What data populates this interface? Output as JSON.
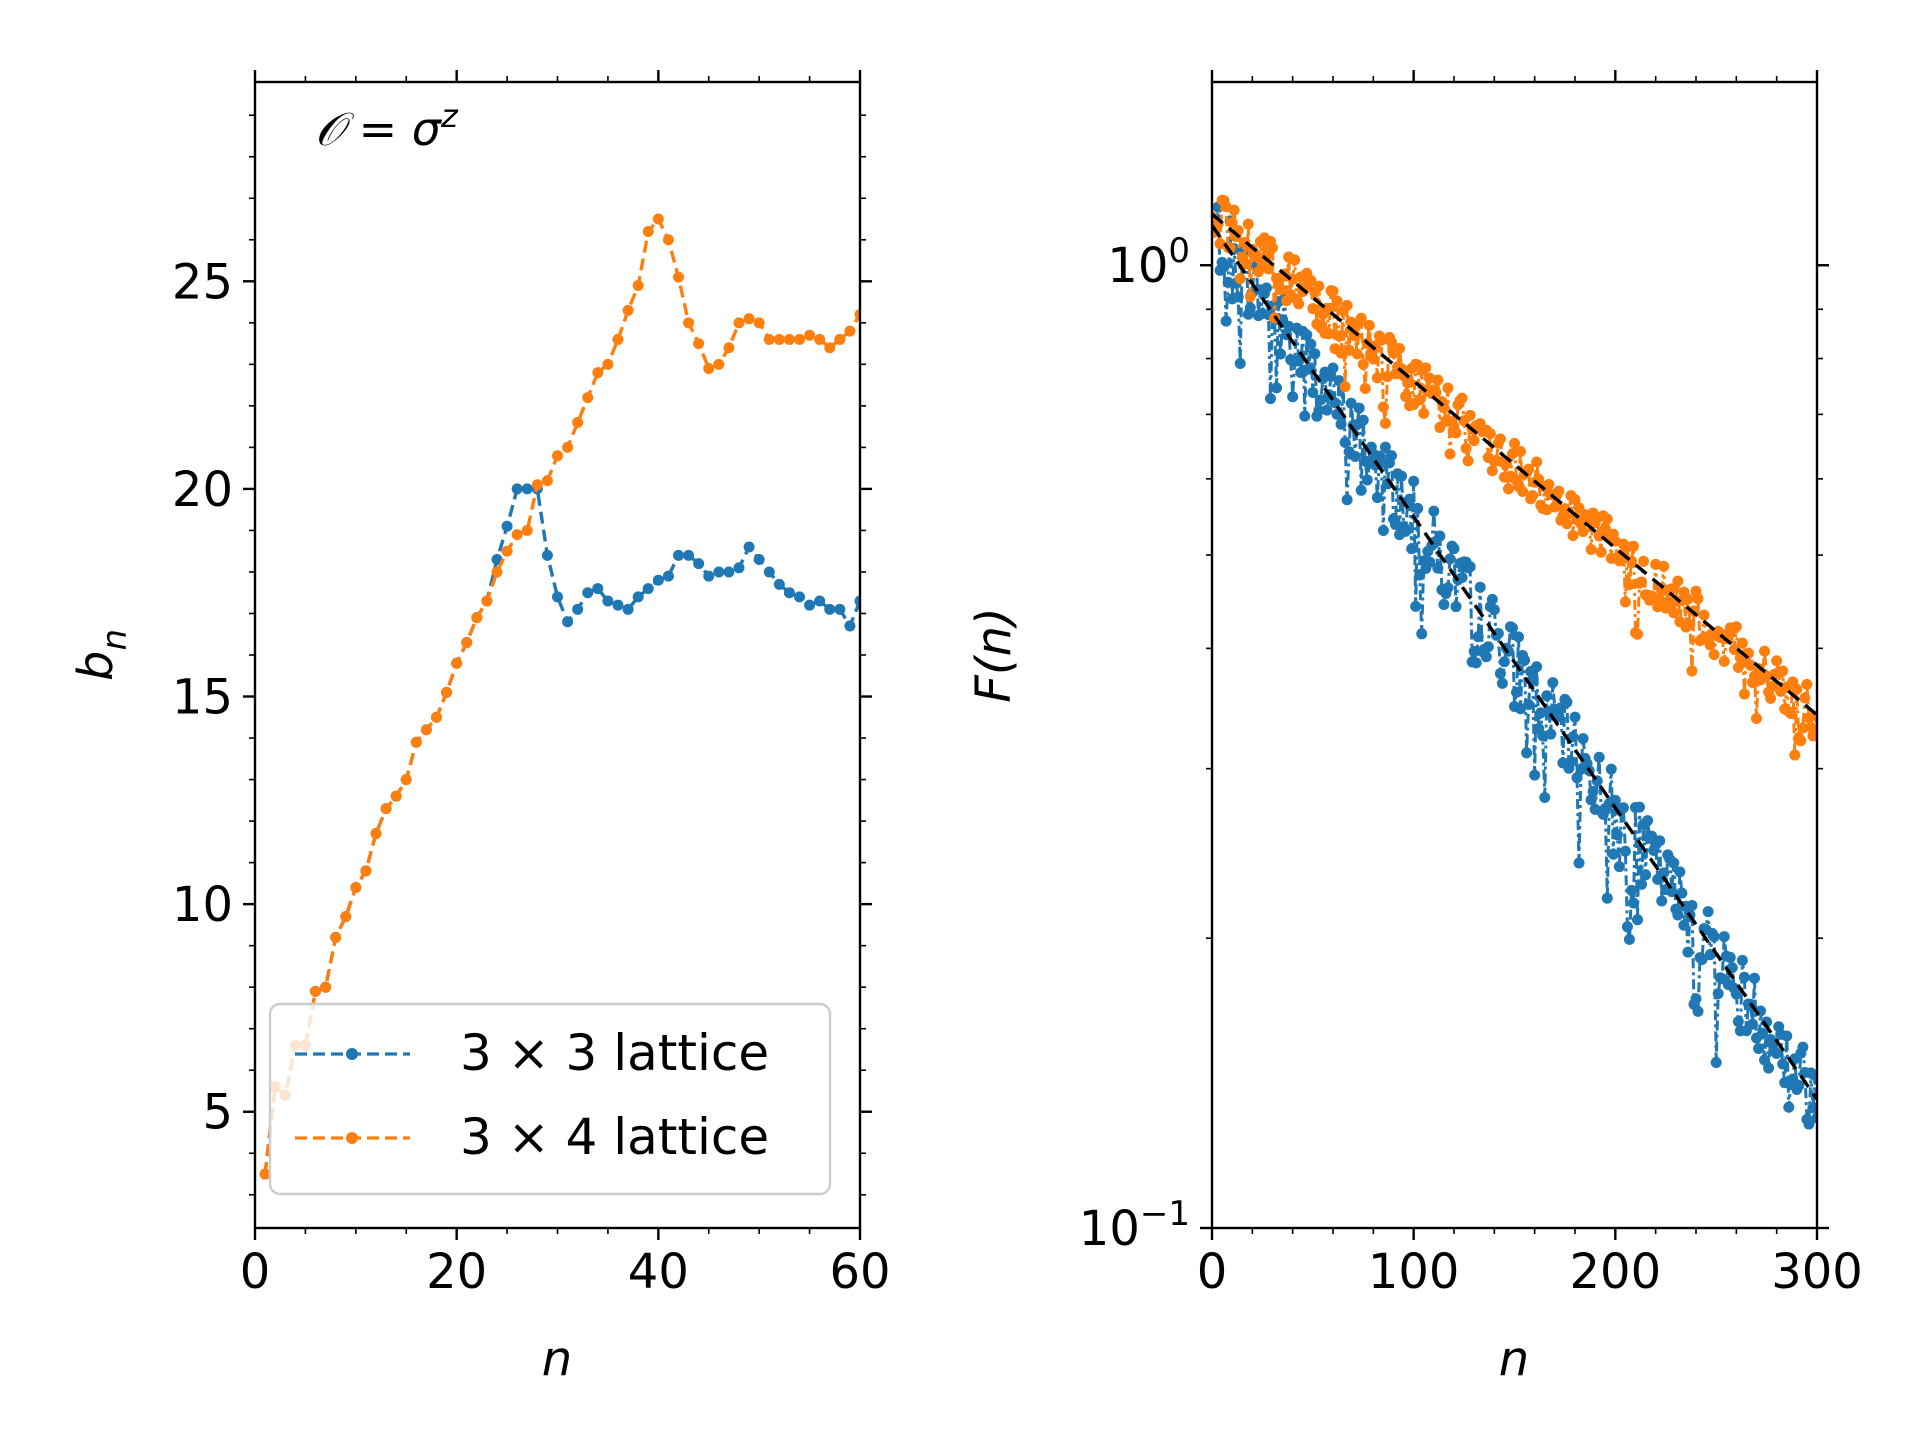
{
  "colors": {
    "series_a": "#1f77b4",
    "series_b": "#ff7f0e",
    "fit": "#000000",
    "axis": "#000000"
  },
  "chart_data": [
    {
      "type": "line",
      "panel": "left",
      "xlabel": "n",
      "ylabel": "b_n",
      "ylabel_base": "b",
      "ylabel_sub": "n",
      "xlim": [
        0,
        60
      ],
      "ylim": [
        2.2,
        29.8
      ],
      "xticks": [
        0,
        20,
        40,
        60
      ],
      "yticks": [
        5,
        10,
        15,
        20,
        25
      ],
      "annotation": {
        "lhs": "𝒪",
        "eq": " = ",
        "base": "σ",
        "sup": "z"
      },
      "legend": {
        "position": "lower-left",
        "entries": [
          "3 × 3 lattice",
          "3 × 4 lattice"
        ]
      },
      "grid": false,
      "series": [
        {
          "name": "3 × 3 lattice",
          "color": "#1f77b4",
          "x": [
            1,
            2,
            3,
            4,
            5,
            6,
            7,
            8,
            9,
            10,
            11,
            12,
            13,
            14,
            15,
            16,
            17,
            18,
            19,
            20,
            21,
            22,
            23,
            24,
            25,
            26,
            27,
            28,
            29,
            30,
            31,
            32,
            33,
            34,
            35,
            36,
            37,
            38,
            39,
            40,
            41,
            42,
            43,
            44,
            45,
            46,
            47,
            48,
            49,
            50,
            51,
            52,
            53,
            54,
            55,
            56,
            57,
            58,
            59,
            60
          ],
          "y": [
            3.5,
            5.6,
            5.4,
            6.6,
            6.6,
            7.9,
            8.0,
            9.2,
            9.7,
            10.4,
            10.8,
            11.7,
            12.3,
            12.6,
            13.0,
            13.9,
            14.2,
            14.5,
            15.1,
            15.8,
            16.3,
            16.9,
            17.3,
            18.3,
            19.1,
            20.0,
            20.0,
            20.0,
            18.4,
            17.4,
            16.8,
            17.1,
            17.5,
            17.6,
            17.3,
            17.2,
            17.1,
            17.4,
            17.6,
            17.8,
            17.9,
            18.4,
            18.4,
            18.2,
            17.9,
            18.0,
            18.0,
            18.1,
            18.6,
            18.3,
            18.0,
            17.7,
            17.5,
            17.4,
            17.2,
            17.3,
            17.1,
            17.1,
            16.7,
            17.3
          ]
        },
        {
          "name": "3 × 4 lattice",
          "color": "#ff7f0e",
          "x": [
            1,
            2,
            3,
            4,
            5,
            6,
            7,
            8,
            9,
            10,
            11,
            12,
            13,
            14,
            15,
            16,
            17,
            18,
            19,
            20,
            21,
            22,
            23,
            24,
            25,
            26,
            27,
            28,
            29,
            30,
            31,
            32,
            33,
            34,
            35,
            36,
            37,
            38,
            39,
            40,
            41,
            42,
            43,
            44,
            45,
            46,
            47,
            48,
            49,
            50,
            51,
            52,
            53,
            54,
            55,
            56,
            57,
            58,
            59,
            60
          ],
          "y": [
            3.5,
            5.6,
            5.4,
            6.6,
            6.6,
            7.9,
            8.0,
            9.2,
            9.7,
            10.4,
            10.8,
            11.7,
            12.3,
            12.6,
            13.0,
            13.9,
            14.2,
            14.5,
            15.1,
            15.8,
            16.3,
            16.9,
            17.3,
            18.0,
            18.5,
            18.9,
            19.0,
            20.1,
            20.2,
            20.8,
            21.0,
            21.6,
            22.2,
            22.8,
            23.0,
            23.6,
            24.3,
            24.9,
            26.2,
            26.5,
            26.0,
            25.1,
            24.0,
            23.5,
            22.9,
            23.0,
            23.4,
            24.0,
            24.1,
            24.0,
            23.6,
            23.6,
            23.6,
            23.6,
            23.7,
            23.6,
            23.4,
            23.6,
            23.8,
            24.2
          ]
        }
      ]
    },
    {
      "type": "line",
      "panel": "right",
      "xlabel": "n",
      "ylabel": "F(n)",
      "yscale": "log",
      "xlim": [
        0,
        300
      ],
      "ylim": [
        0.1,
        1.55
      ],
      "xticks": [
        0,
        100,
        200,
        300
      ],
      "yticks": [
        {
          "value": 1,
          "base": "10",
          "exp": "0"
        },
        {
          "value": 0.1,
          "base": "10",
          "exp": "−1"
        }
      ],
      "grid": false,
      "series": [
        {
          "name": "",
          "color": "#1f77b4",
          "style": "scatter-line",
          "trend": {
            "y0": 1.1,
            "decay": 0.006966
          },
          "noise": 0.09,
          "n": 300
        },
        {
          "name": "",
          "color": "#ff7f0e",
          "style": "scatter-line",
          "trend": {
            "y0": 1.13,
            "decay": 0.003992
          },
          "noise": 0.06,
          "n": 300
        }
      ],
      "fits": [
        {
          "name": "",
          "color": "#000000",
          "style": "dashed",
          "y0": 1.1,
          "decay": 0.006966
        },
        {
          "name": "",
          "color": "#000000",
          "style": "dashed",
          "y0": 1.13,
          "decay": 0.003992
        }
      ]
    }
  ]
}
